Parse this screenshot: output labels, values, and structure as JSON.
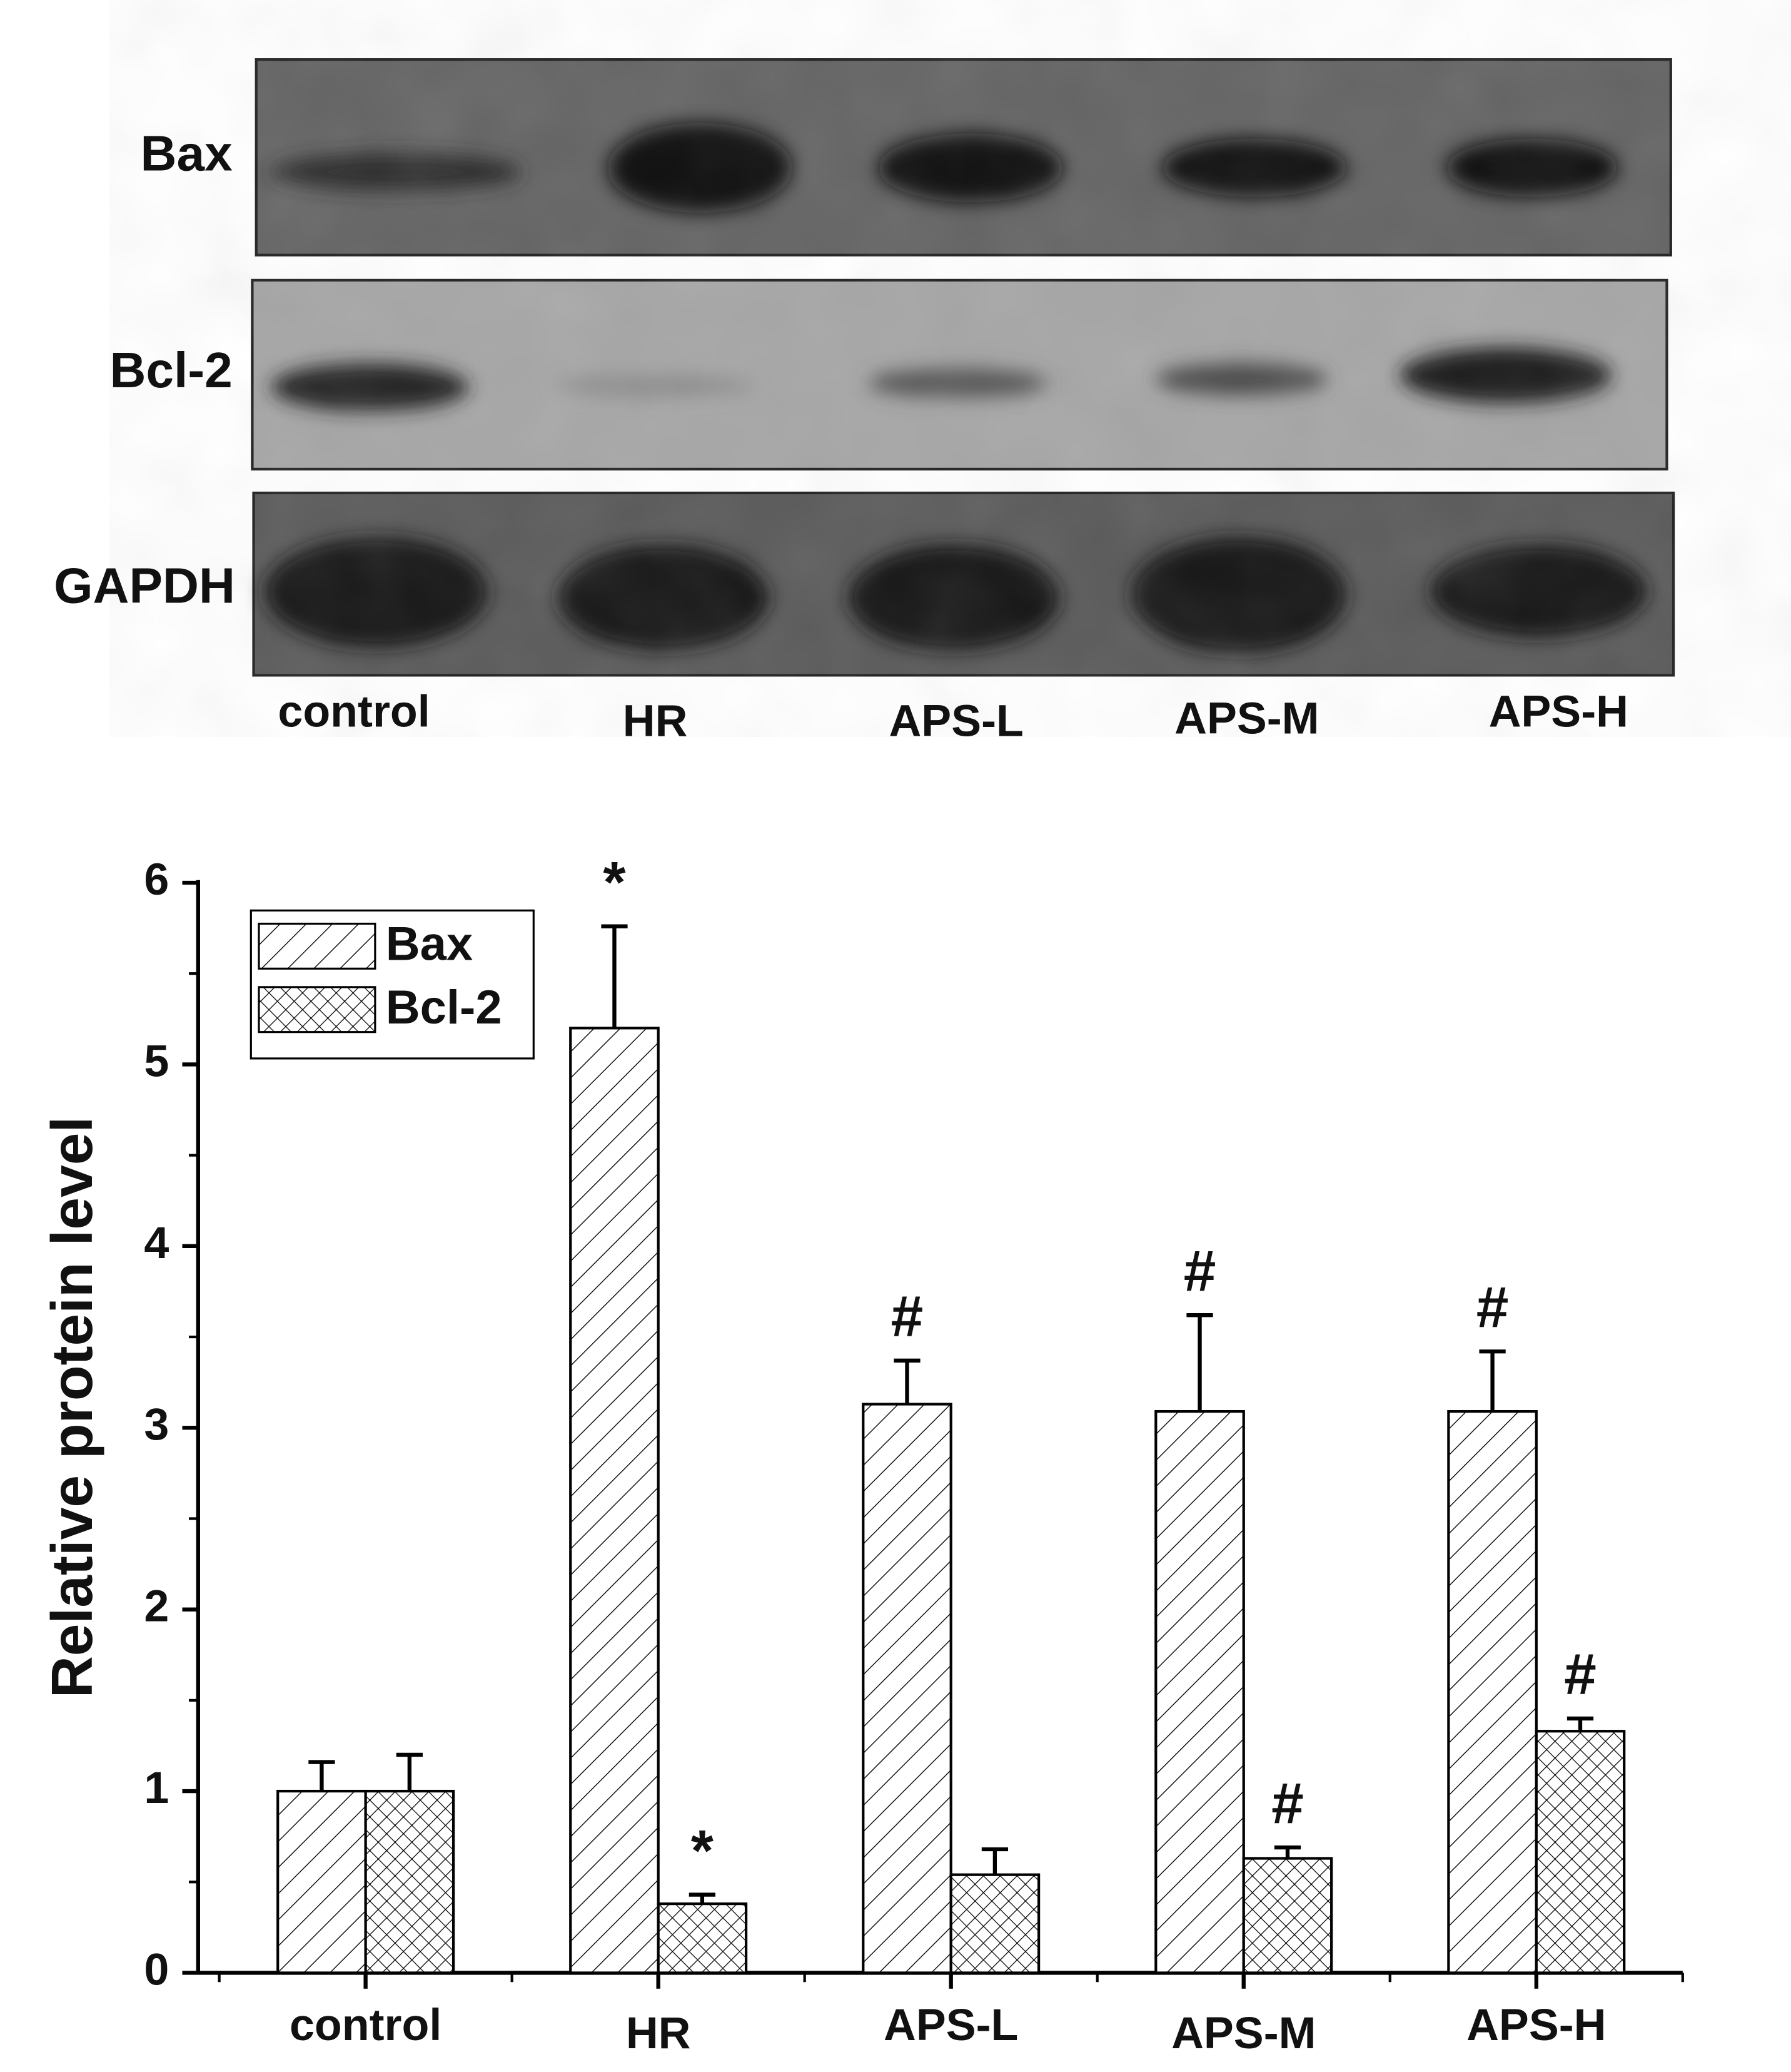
{
  "blot": {
    "rows": [
      "Bax",
      "Bcl-2",
      "GAPDH"
    ]
  },
  "chart_data": {
    "type": "bar",
    "y_label": "Relative protein level",
    "categories": [
      "control",
      "HR",
      "APS-L",
      "APS-M",
      "APS-H"
    ],
    "series": [
      {
        "name": "Bax",
        "color": "#000000",
        "pattern": "hatch",
        "values": [
          1.0,
          5.2,
          3.13,
          3.09,
          3.09
        ],
        "errors": [
          0.16,
          0.56,
          0.24,
          0.53,
          0.33
        ],
        "annotations": [
          null,
          "*",
          "#",
          "#",
          "#"
        ]
      },
      {
        "name": "Bcl-2",
        "color": "#000000",
        "pattern": "crosshatch",
        "values": [
          1.0,
          0.38,
          0.54,
          0.63,
          1.33
        ],
        "errors": [
          0.2,
          0.05,
          0.14,
          0.06,
          0.07
        ],
        "annotations": [
          null,
          "*",
          null,
          "#",
          "#"
        ]
      }
    ],
    "ylim": [
      0,
      6
    ],
    "yticks": [
      0,
      1,
      2,
      3,
      4,
      5,
      6
    ],
    "legend": "top-left",
    "grid": false
  }
}
